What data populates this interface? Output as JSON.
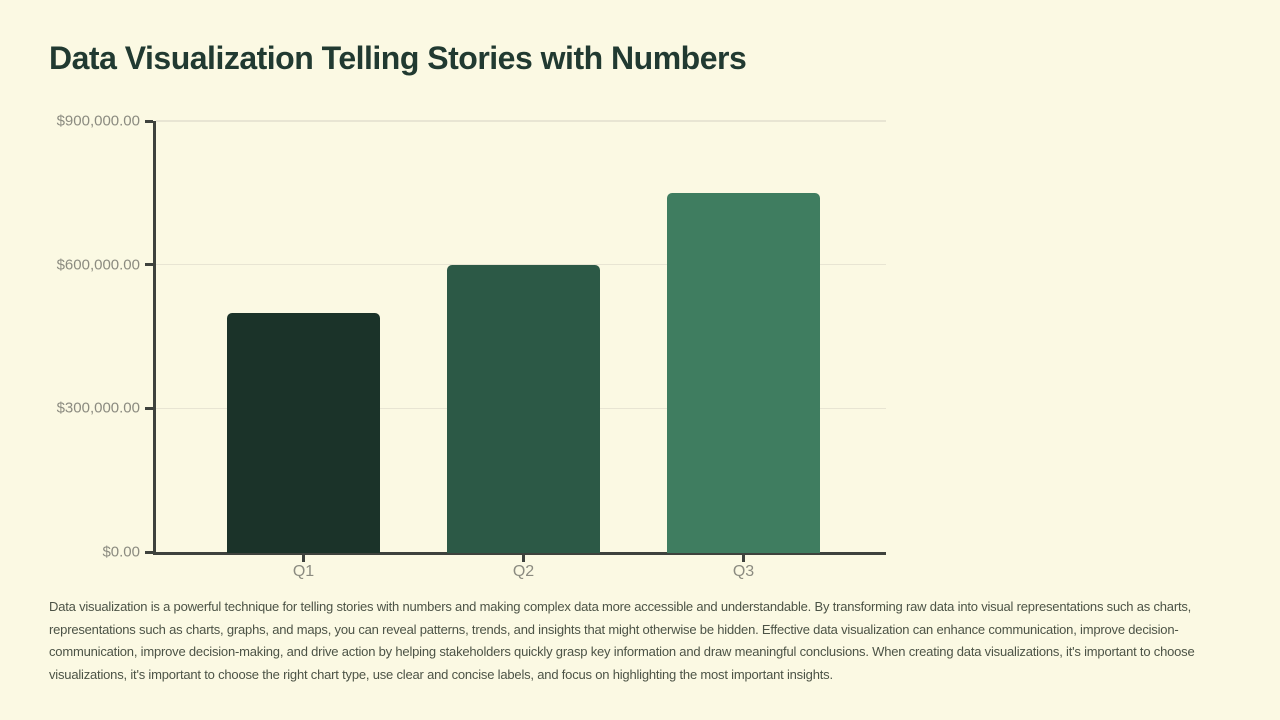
{
  "page": {
    "background_color": "#FBF9E3"
  },
  "title": {
    "text": "Data Visualization Telling Stories with Numbers",
    "color": "#213A31"
  },
  "chart_data": {
    "type": "bar",
    "categories": [
      "Q1",
      "Q2",
      "Q3"
    ],
    "values": [
      500000,
      600000,
      750000
    ],
    "bar_colors": [
      "#1B3329",
      "#2C5946",
      "#3F7D60"
    ],
    "title": "",
    "xlabel": "",
    "ylabel": "",
    "ylim": [
      0,
      900000
    ],
    "ytick_step": 300000,
    "ytick_labels": [
      "$0.00",
      "$300,000.00",
      "$600,000.00",
      "$900,000.00"
    ],
    "grid": true,
    "legend": "none",
    "axis_color": "#3E423D",
    "gridline_color": "#E8E5D3",
    "tick_label_color": "#8B8B80"
  },
  "paragraph": {
    "color": "#4C5346",
    "lines": [
      "Data visualization is a powerful technique for telling stories with numbers and making complex data more accessible and understandable. By transforming raw data into visual representations such as charts,",
      "representations such as charts, graphs, and maps, you can reveal patterns, trends, and insights that might otherwise be hidden. Effective data visualization can enhance communication, improve decision-",
      "communication, improve decision-making, and drive action by helping stakeholders quickly grasp key information and draw meaningful conclusions. When creating data visualizations, it's important to choose",
      "visualizations, it's important to choose the right chart type, use clear and concise labels, and focus on highlighting the most important insights."
    ]
  }
}
